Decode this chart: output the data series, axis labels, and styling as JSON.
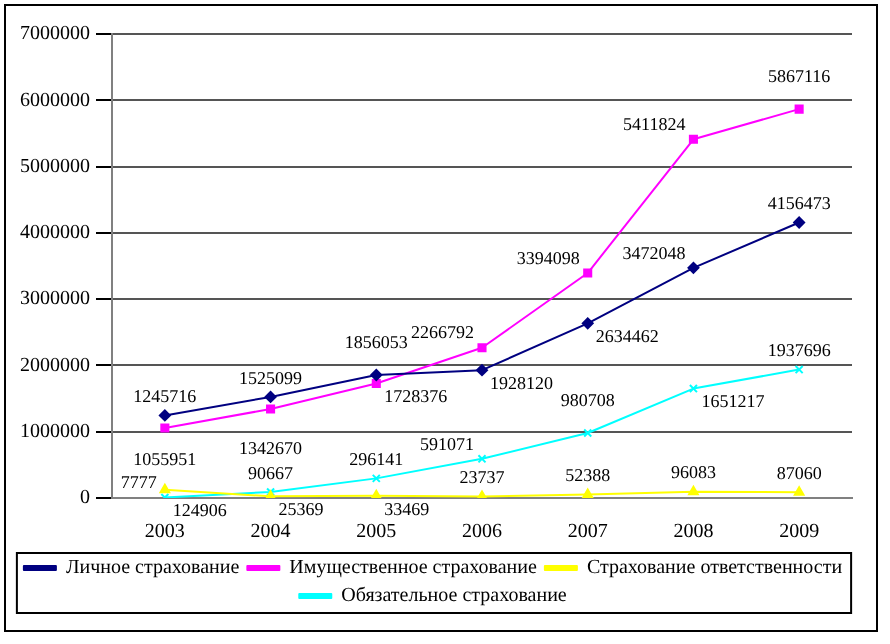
{
  "chart_data": {
    "type": "line",
    "categories": [
      "2003",
      "2004",
      "2005",
      "2006",
      "2007",
      "2008",
      "2009"
    ],
    "series": [
      {
        "name": "Личное страхование",
        "color": "#000080",
        "marker": "diamond",
        "values": [
          1245716,
          1525099,
          1856053,
          1928120,
          2634462,
          3472048,
          4156473
        ]
      },
      {
        "name": "Имущественное страхование",
        "color": "#ff00ff",
        "marker": "square",
        "values": [
          1055951,
          1342670,
          1728376,
          2266792,
          3394098,
          5411824,
          5867116
        ]
      },
      {
        "name": "Страхование ответственности",
        "color": "#ffff00",
        "marker": "triangle",
        "values": [
          124906,
          25369,
          33469,
          23737,
          52388,
          96083,
          87060
        ]
      },
      {
        "name": "Обязательное страхование",
        "color": "#00ffff",
        "marker": "cross",
        "values": [
          7777,
          90667,
          296141,
          591071,
          980708,
          1651217,
          1937696
        ]
      }
    ],
    "ylim": [
      0,
      7000000
    ],
    "yticks": [
      0,
      1000000,
      2000000,
      3000000,
      4000000,
      5000000,
      6000000,
      7000000
    ],
    "grid": "y",
    "legend": "bottom",
    "data_labels": true
  }
}
